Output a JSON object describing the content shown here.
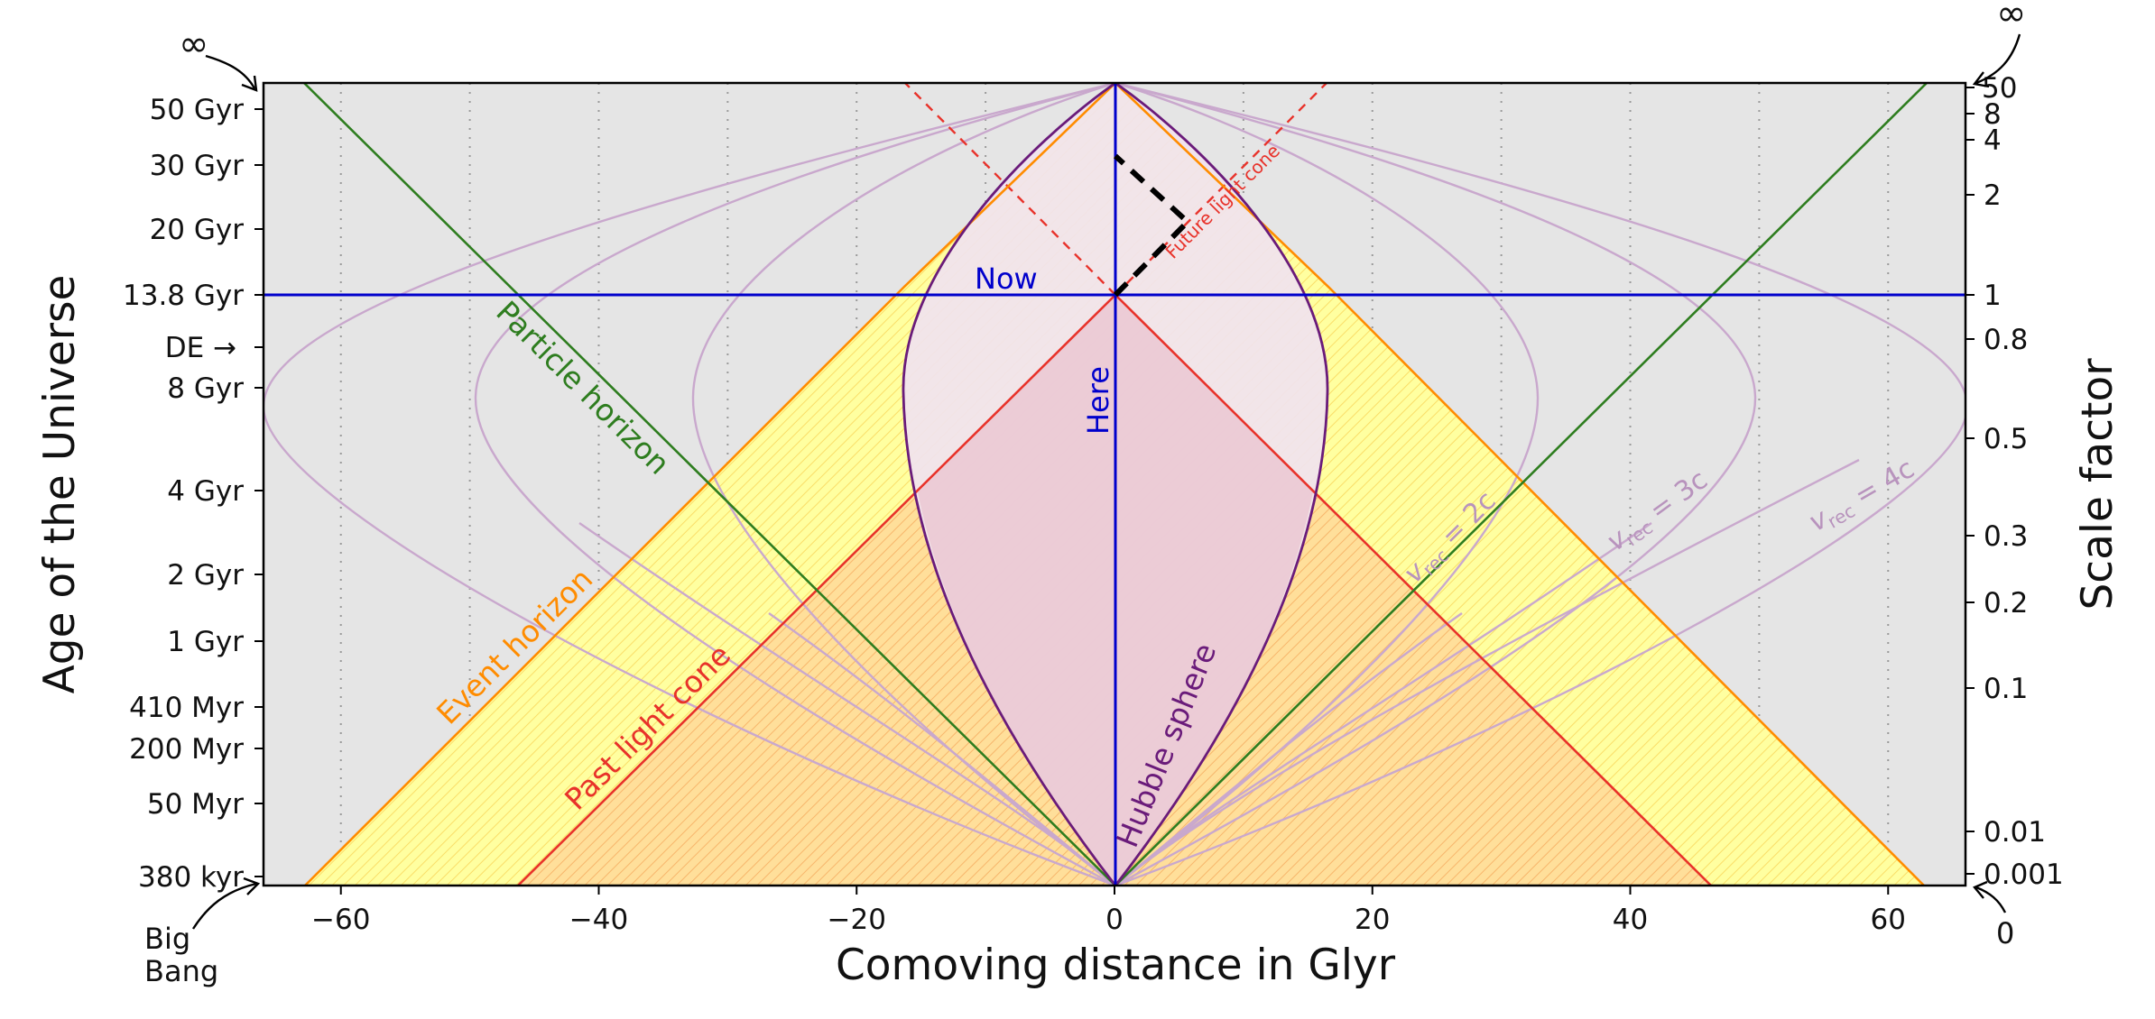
{
  "diagram": {
    "xlabel": "Comoving distance in Glyr",
    "ylabel_left": "Age of the Universe",
    "ylabel_right": "Scale factor",
    "x_range": [
      -66,
      66
    ],
    "x_ticks": [
      {
        "value": -60,
        "label": "−60"
      },
      {
        "value": -40,
        "label": "−40"
      },
      {
        "value": -20,
        "label": "−20"
      },
      {
        "value": 0,
        "label": "0"
      },
      {
        "value": 20,
        "label": "20"
      },
      {
        "value": 40,
        "label": "40"
      },
      {
        "value": 60,
        "label": "60"
      }
    ],
    "x_gridlines": [
      -60,
      -50,
      -40,
      -30,
      -20,
      -10,
      10,
      20,
      30,
      40,
      50,
      60
    ],
    "age_ticks": [
      "50 Gyr",
      "30 Gyr",
      "20 Gyr",
      "13.8 Gyr",
      "DE →",
      "8 Gyr",
      "4 Gyr",
      "2 Gyr",
      "1 Gyr",
      "410 Myr",
      "200 Myr",
      "50 Myr",
      "380 kyr"
    ],
    "scale_ticks": [
      "50",
      "8",
      "4",
      "2",
      "1",
      "0.8",
      "0.5",
      "0.3",
      "0.2",
      "0.1",
      "0.01",
      "0.001"
    ],
    "corner_labels": {
      "top_left": "∞",
      "top_right": "∞",
      "bottom_left": "Big\nBang",
      "bottom_right": "0"
    },
    "annotations": {
      "now": "Now",
      "here": "Here",
      "particle_horizon": "Particle  horizon",
      "event_horizon": "Event  horizon",
      "past_light_cone": "Past  light  cone",
      "future_light_cone": "Future light cone",
      "hubble_sphere": "Hubble  sphere",
      "vrec_2c": "v",
      "vrec_3c": "v",
      "vrec_4c": "v",
      "vrec_sub": "rec",
      "vrec_2c_val": " = 2c",
      "vrec_3c_val": " = 3c",
      "vrec_4c_val": " = 4c"
    },
    "colors": {
      "background": "#e5e5e5",
      "now_line": "#0000cc",
      "particle_horizon": "#2e7d1f",
      "event_horizon": "#ff8c00",
      "light_cone": "#e8322a",
      "hubble_sphere": "#6a1b7a",
      "hubble_fill": "#f1e3ef",
      "yellow_fill": "#ffffa0",
      "past_fill": "#ffdf9a",
      "vrec_curves": "#c9a8cd"
    }
  }
}
